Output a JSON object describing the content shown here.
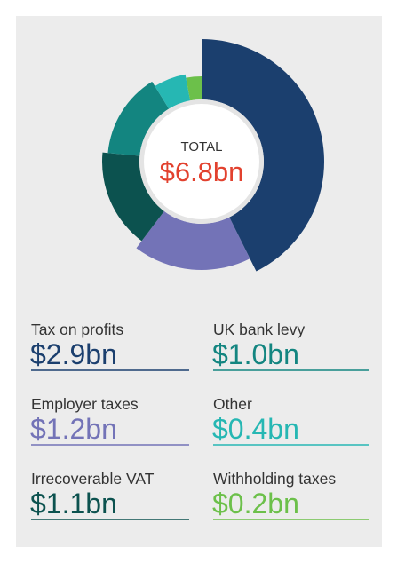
{
  "chart_data": {
    "type": "donut",
    "categories": [
      "Tax on profits",
      "Employer taxes",
      "Irrecoverable VAT",
      "UK bank levy",
      "Other",
      "Withholding taxes"
    ],
    "values": [
      2.9,
      1.2,
      1.1,
      1.0,
      0.4,
      0.2
    ],
    "value_labels": [
      "$2.9bn",
      "$1.2bn",
      "$1.1bn",
      "$1.0bn",
      "$0.4bn",
      "$0.2bn"
    ],
    "colors": [
      "#1b3f6e",
      "#7373b7",
      "#0c524f",
      "#138580",
      "#26b7b3",
      "#6cc04a"
    ],
    "legend_order": [
      0,
      3,
      1,
      4,
      2,
      5
    ],
    "total": {
      "label": "TOTAL",
      "value": 6.8,
      "value_label": "$6.8bn",
      "color": "#e2412e"
    }
  }
}
